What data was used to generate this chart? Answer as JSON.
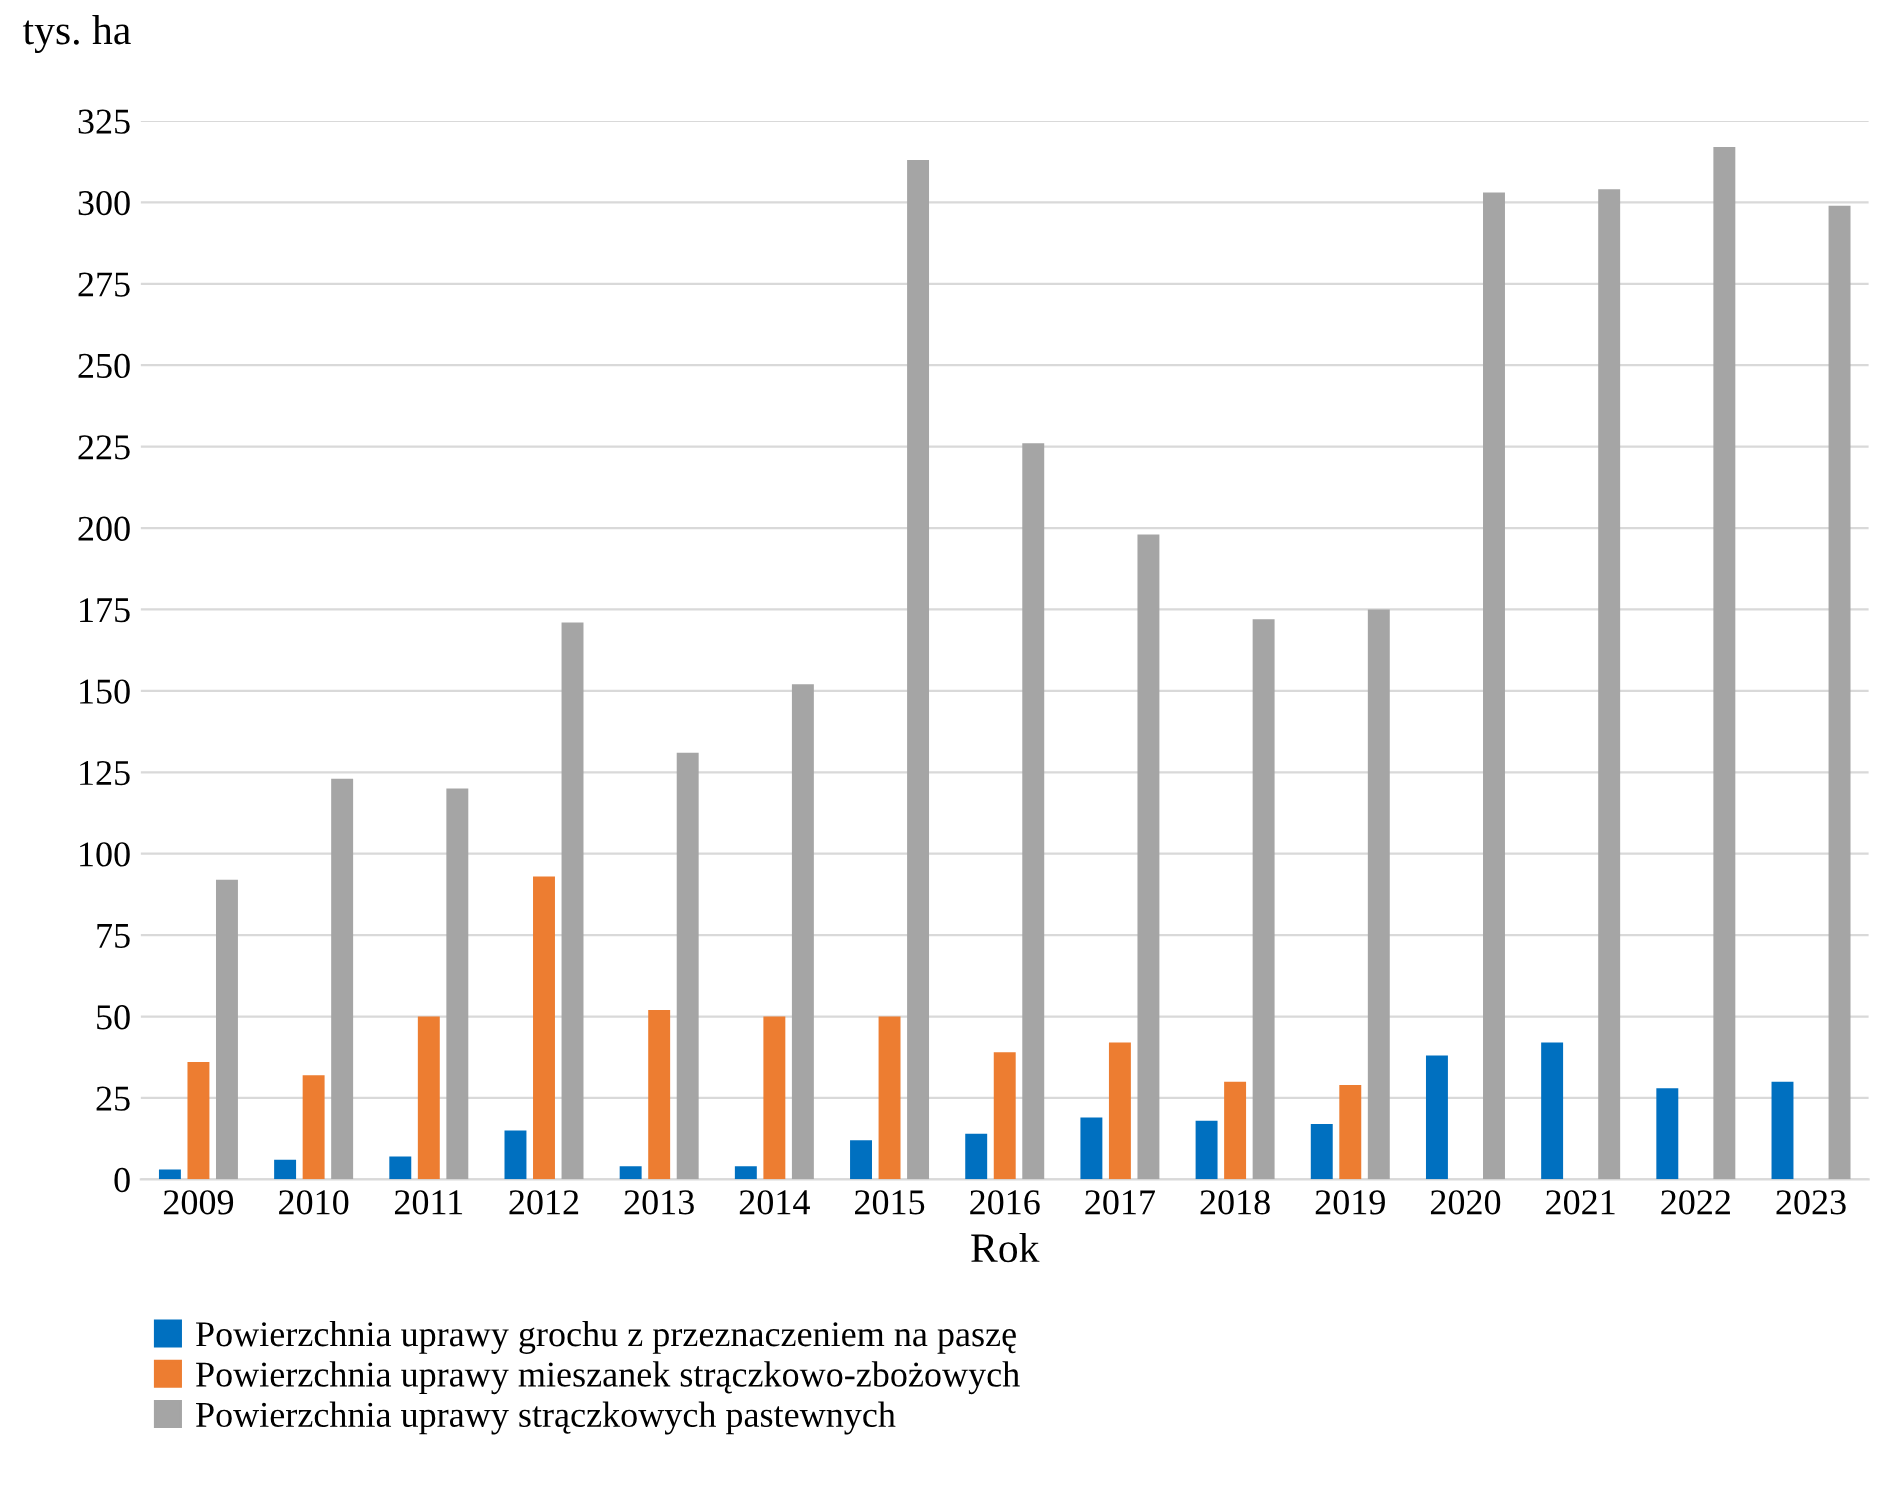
{
  "chart_data": {
    "type": "bar",
    "ylabel": "tys. ha",
    "xlabel": "Rok",
    "categories": [
      "2009",
      "2010",
      "2011",
      "2012",
      "2013",
      "2014",
      "2015",
      "2016",
      "2017",
      "2018",
      "2019",
      "2020",
      "2021",
      "2022",
      "2023"
    ],
    "series": [
      {
        "name": "Powierzchnia uprawy grochu z przeznaczeniem na paszę",
        "color": "#0070c0",
        "values": [
          3,
          6,
          7,
          15,
          4,
          4,
          12,
          14,
          19,
          18,
          17,
          38,
          42,
          28,
          30
        ]
      },
      {
        "name": "Powierzchnia uprawy mieszanek strączkowo-zbożowych",
        "color": "#ed7d31",
        "values": [
          36,
          32,
          50,
          93,
          52,
          50,
          50,
          39,
          42,
          30,
          29,
          null,
          null,
          null,
          null
        ]
      },
      {
        "name": "Powierzchnia uprawy strączkowych pastewnych",
        "color": "#a5a5a5",
        "values": [
          92,
          123,
          120,
          171,
          131,
          152,
          313,
          226,
          198,
          172,
          175,
          303,
          304,
          317,
          299
        ]
      }
    ],
    "ylim": [
      0,
      325
    ],
    "yticks": [
      0,
      25,
      50,
      75,
      100,
      125,
      150,
      175,
      200,
      225,
      250,
      275,
      300,
      325
    ],
    "grid": "y",
    "legend": "bottom"
  }
}
